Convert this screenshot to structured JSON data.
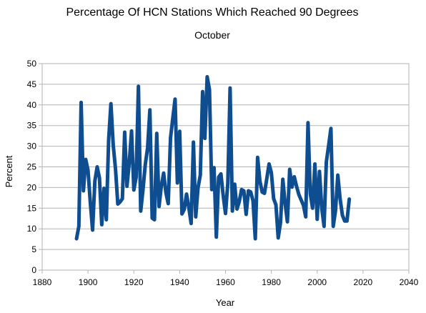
{
  "chart_data": {
    "type": "line",
    "title": "Percentage Of HCN Stations Which Reached 90 Degrees",
    "subtitle": "October",
    "xlabel": "Year",
    "ylabel": "Percent",
    "xlim": [
      1880,
      2040
    ],
    "ylim": [
      0,
      50
    ],
    "xticks": [
      1880,
      1900,
      1920,
      1940,
      1960,
      1980,
      2000,
      2020,
      2040
    ],
    "yticks": [
      0,
      5,
      10,
      15,
      20,
      25,
      30,
      35,
      40,
      45,
      50
    ],
    "grid": true,
    "legend": "none",
    "line_color": "#0e4d8f",
    "series": [
      {
        "x": [
          1895,
          1896,
          1897,
          1898,
          1899,
          1900,
          1901,
          1902,
          1903,
          1904,
          1905,
          1906,
          1907,
          1908,
          1909,
          1910,
          1911,
          1912,
          1913,
          1914,
          1915,
          1916,
          1917,
          1918,
          1919,
          1920,
          1921,
          1922,
          1923,
          1924,
          1925,
          1926,
          1927,
          1928,
          1929,
          1930,
          1931,
          1932,
          1933,
          1934,
          1935,
          1936,
          1937,
          1938,
          1939,
          1940,
          1941,
          1942,
          1943,
          1944,
          1945,
          1946,
          1947,
          1948,
          1949,
          1950,
          1951,
          1952,
          1953,
          1954,
          1955,
          1956,
          1957,
          1958,
          1959,
          1960,
          1961,
          1962,
          1963,
          1964,
          1965,
          1966,
          1967,
          1968,
          1969,
          1970,
          1971,
          1972,
          1973,
          1974,
          1975,
          1976,
          1977,
          1978,
          1979,
          1980,
          1981,
          1982,
          1983,
          1984,
          1985,
          1986,
          1987,
          1988,
          1989,
          1990,
          1991,
          1992,
          1993,
          1994,
          1995,
          1996,
          1997,
          1998,
          1999,
          2000,
          2001,
          2002,
          2003,
          2004,
          2005,
          2006,
          2007,
          2008,
          2009,
          2010,
          2011,
          2012,
          2013,
          2014
        ],
        "values": [
          7.6,
          10.6,
          40.6,
          19.2,
          26.8,
          24.2,
          16.4,
          9.7,
          21.6,
          25.0,
          22.3,
          11.0,
          19.8,
          12.2,
          31.5,
          40.3,
          30.3,
          24.5,
          16.0,
          16.5,
          17.3,
          33.4,
          20.3,
          26.0,
          33.7,
          19.4,
          22.5,
          44.5,
          14.3,
          19.5,
          25.6,
          29.6,
          38.8,
          12.6,
          12.2,
          33.1,
          15.4,
          20.4,
          23.5,
          18.7,
          16.1,
          32.0,
          36.8,
          41.4,
          21.1,
          33.6,
          13.6,
          14.7,
          18.4,
          15.1,
          11.3,
          31.0,
          12.9,
          19.9,
          23.0,
          43.2,
          31.9,
          46.8,
          43.7,
          19.5,
          24.8,
          8.0,
          22.5,
          23.3,
          18.0,
          13.7,
          21.0,
          44.1,
          14.3,
          20.8,
          14.8,
          16.6,
          19.5,
          19.2,
          13.5,
          19.2,
          18.9,
          16.8,
          7.6,
          27.3,
          21.6,
          18.9,
          18.6,
          22.1,
          25.7,
          23.6,
          17.3,
          15.8,
          7.8,
          11.5,
          22.0,
          16.2,
          11.7,
          24.4,
          20.1,
          22.6,
          20.3,
          18.3,
          17.0,
          15.7,
          12.9,
          35.7,
          18.5,
          15.0,
          25.7,
          12.3,
          23.9,
          15.0,
          10.6,
          26.2,
          30.2,
          34.3,
          10.6,
          14.4,
          23.0,
          17.3,
          13.3,
          11.9,
          11.9,
          17.2
        ]
      }
    ]
  }
}
